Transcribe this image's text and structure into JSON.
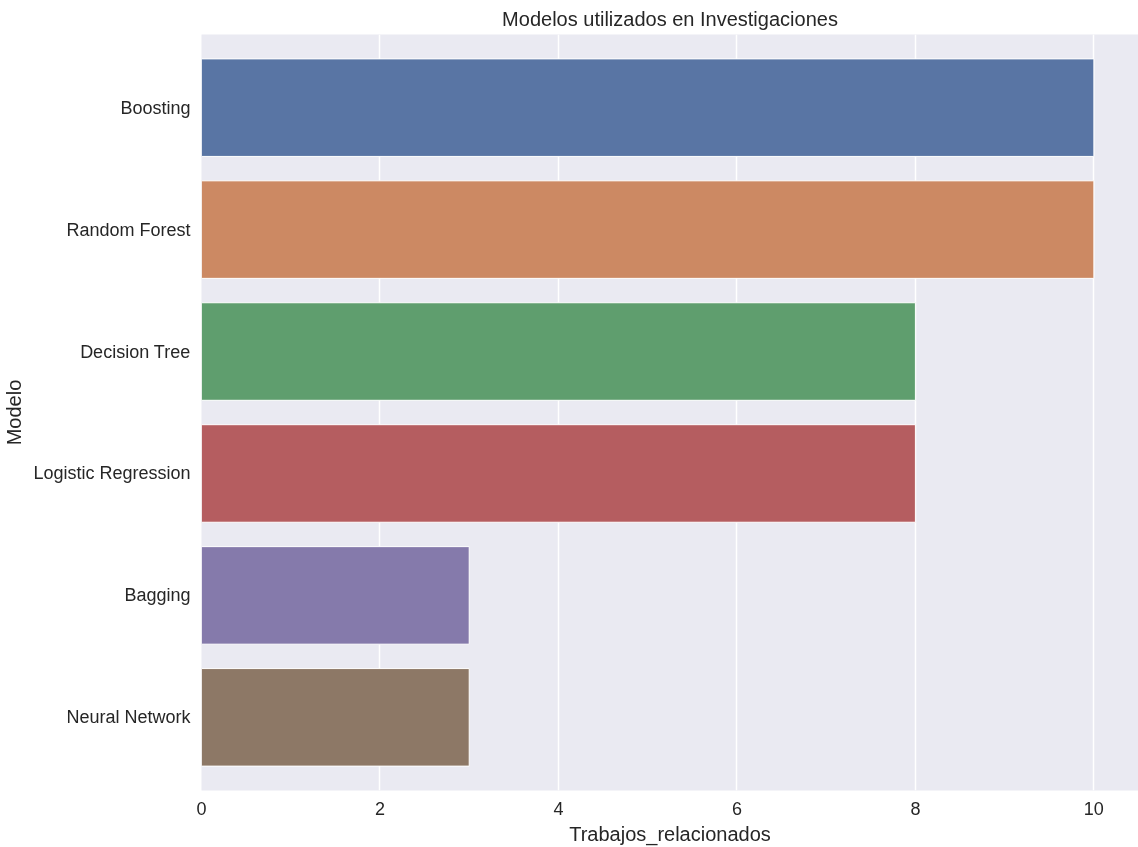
{
  "chart_data": {
    "type": "bar",
    "orientation": "horizontal",
    "title": "Modelos utilizados en Investigaciones",
    "xlabel": "Trabajos_relacionados",
    "ylabel": "Modelo",
    "categories": [
      "Boosting",
      "Random Forest",
      "Decision Tree",
      "Logistic Regression",
      "Bagging",
      "Neural Network"
    ],
    "values": [
      10,
      10,
      8,
      8,
      3,
      3
    ],
    "colors": [
      "#5975a4",
      "#cc8963",
      "#5f9e6e",
      "#b55d60",
      "#857aab",
      "#8d7866"
    ],
    "xlim": [
      0,
      10.5
    ],
    "xticks": [
      0,
      2,
      4,
      6,
      8,
      10
    ],
    "grid": "x"
  }
}
